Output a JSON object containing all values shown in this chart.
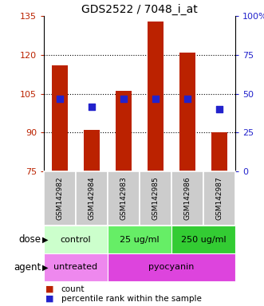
{
  "title": "GDS2522 / 7048_i_at",
  "samples": [
    "GSM142982",
    "GSM142984",
    "GSM142983",
    "GSM142985",
    "GSM142986",
    "GSM142987"
  ],
  "bar_bottoms": [
    75,
    75,
    75,
    75,
    75,
    75
  ],
  "bar_tops": [
    116,
    91,
    106,
    133,
    121,
    90
  ],
  "percentile_values": [
    103,
    100,
    103,
    103,
    103,
    99
  ],
  "ylim_left": [
    75,
    135
  ],
  "ylim_right": [
    0,
    100
  ],
  "yticks_left": [
    75,
    90,
    105,
    120,
    135
  ],
  "yticks_right": [
    0,
    25,
    50,
    75,
    100
  ],
  "ytick_labels_left": [
    "75",
    "90",
    "105",
    "120",
    "135"
  ],
  "ytick_labels_right": [
    "0",
    "25",
    "50",
    "75",
    "100%"
  ],
  "bar_color": "#bb2200",
  "dot_color": "#2222cc",
  "dot_size": 28,
  "dose_groups": [
    {
      "label": "control",
      "cols": [
        0,
        1
      ],
      "color": "#ccffcc"
    },
    {
      "label": "25 ug/ml",
      "cols": [
        2,
        3
      ],
      "color": "#66ee66"
    },
    {
      "label": "250 ug/ml",
      "cols": [
        4,
        5
      ],
      "color": "#33cc33"
    }
  ],
  "agent_groups": [
    {
      "label": "untreated",
      "cols": [
        0,
        1
      ],
      "color": "#ee88ee"
    },
    {
      "label": "pyocyanin",
      "cols": [
        2,
        3,
        4,
        5
      ],
      "color": "#dd44dd"
    }
  ],
  "dose_label": "dose",
  "agent_label": "agent",
  "legend_count_label": "count",
  "legend_pct_label": "percentile rank within the sample",
  "grid_color": "#000000",
  "background_color": "#ffffff",
  "plot_bg": "#ffffff",
  "sample_box_color": "#cccccc",
  "grid_lines": [
    90,
    105,
    120
  ]
}
